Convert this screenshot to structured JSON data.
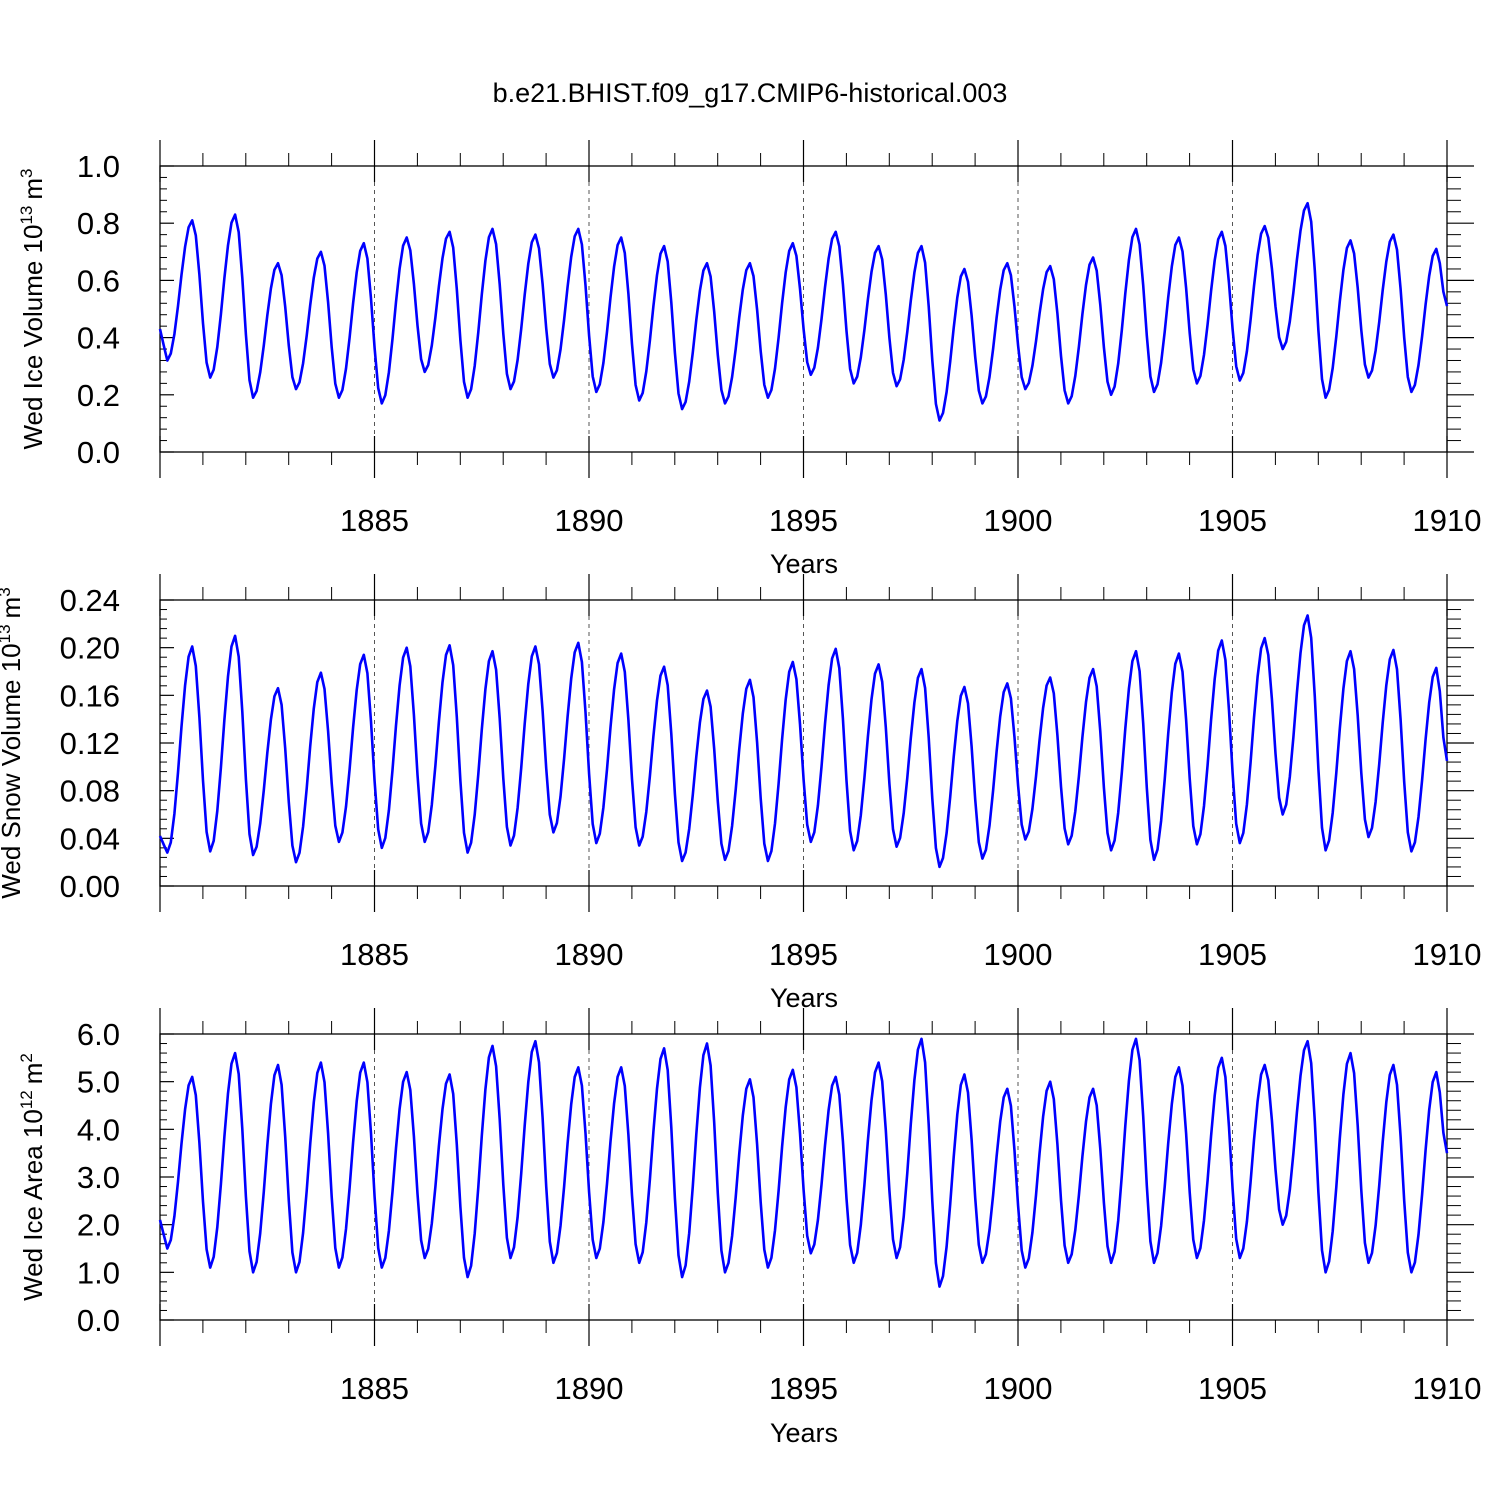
{
  "title": "b.e21.BHIST.f09_g17.CMIP6-historical.003",
  "line_color": "#0000ff",
  "chart_data": [
    {
      "type": "line",
      "ylabel": "Wed Ice Volume 10",
      "ylabel_exp": "13",
      "ylabel_unit": "m",
      "ylabel_unit_exp": "3",
      "xlabel": "Years",
      "xlim": [
        1880.0,
        1910.0
      ],
      "ylim": [
        0.0,
        1.0
      ],
      "yticks": [
        "0.0",
        "0.2",
        "0.4",
        "0.6",
        "0.8",
        "1.0"
      ],
      "ytick_values": [
        0.0,
        0.2,
        0.4,
        0.6,
        0.8,
        1.0
      ],
      "xticks": [
        "1885",
        "1890",
        "1895",
        "1900",
        "1905",
        "1910"
      ],
      "xtick_values": [
        1885,
        1890,
        1895,
        1900,
        1905,
        1910
      ],
      "grid_years": [
        1885,
        1890,
        1895,
        1900,
        1905
      ],
      "start_year": 1880.0,
      "minima": [
        0.32,
        0.26,
        0.19,
        0.22,
        0.19,
        0.17,
        0.28,
        0.19,
        0.22,
        0.26,
        0.21,
        0.18,
        0.15,
        0.17,
        0.19,
        0.27,
        0.24,
        0.23,
        0.11,
        0.17,
        0.22,
        0.17,
        0.2,
        0.21,
        0.24,
        0.25,
        0.36,
        0.19,
        0.26,
        0.21
      ],
      "maxima": [
        0.81,
        0.83,
        0.66,
        0.7,
        0.73,
        0.75,
        0.77,
        0.78,
        0.76,
        0.78,
        0.75,
        0.72,
        0.66,
        0.66,
        0.73,
        0.77,
        0.72,
        0.72,
        0.64,
        0.66,
        0.65,
        0.68,
        0.78,
        0.75,
        0.77,
        0.79,
        0.87,
        0.74,
        0.76,
        0.71
      ],
      "start_value": 0.43,
      "end_value": 0.51
    },
    {
      "type": "line",
      "ylabel": "Wed Snow Volume 10",
      "ylabel_exp": "13",
      "ylabel_unit": "m",
      "ylabel_unit_exp": "3",
      "xlabel": "Years",
      "xlim": [
        1880.0,
        1910.0
      ],
      "ylim": [
        0.0,
        0.24
      ],
      "yticks": [
        "0.00",
        "0.04",
        "0.08",
        "0.12",
        "0.16",
        "0.20",
        "0.24"
      ],
      "ytick_values": [
        0.0,
        0.04,
        0.08,
        0.12,
        0.16,
        0.2,
        0.24
      ],
      "xticks": [
        "1885",
        "1890",
        "1895",
        "1900",
        "1905",
        "1910"
      ],
      "xtick_values": [
        1885,
        1890,
        1895,
        1900,
        1905,
        1910
      ],
      "grid_years": [
        1885,
        1890,
        1895,
        1900,
        1905
      ],
      "start_year": 1880.0,
      "minima": [
        0.028,
        0.029,
        0.026,
        0.02,
        0.037,
        0.032,
        0.037,
        0.028,
        0.034,
        0.045,
        0.036,
        0.034,
        0.021,
        0.022,
        0.021,
        0.037,
        0.03,
        0.033,
        0.016,
        0.023,
        0.039,
        0.035,
        0.03,
        0.022,
        0.035,
        0.036,
        0.06,
        0.03,
        0.041,
        0.029
      ],
      "maxima": [
        0.201,
        0.21,
        0.166,
        0.179,
        0.194,
        0.2,
        0.202,
        0.197,
        0.201,
        0.204,
        0.195,
        0.184,
        0.164,
        0.173,
        0.188,
        0.199,
        0.186,
        0.182,
        0.167,
        0.17,
        0.175,
        0.182,
        0.197,
        0.195,
        0.206,
        0.208,
        0.227,
        0.197,
        0.198,
        0.183
      ],
      "start_value": 0.042,
      "end_value": 0.105
    },
    {
      "type": "line",
      "ylabel": "Wed Ice Area 10",
      "ylabel_exp": "12",
      "ylabel_unit": "m",
      "ylabel_unit_exp": "2",
      "xlabel": "Years",
      "xlim": [
        1880.0,
        1910.0
      ],
      "ylim": [
        0.0,
        6.0
      ],
      "yticks": [
        "0.0",
        "1.0",
        "2.0",
        "3.0",
        "4.0",
        "5.0",
        "6.0"
      ],
      "ytick_values": [
        0.0,
        1.0,
        2.0,
        3.0,
        4.0,
        5.0,
        6.0
      ],
      "xticks": [
        "1885",
        "1890",
        "1895",
        "1900",
        "1905",
        "1910"
      ],
      "xtick_values": [
        1885,
        1890,
        1895,
        1900,
        1905,
        1910
      ],
      "grid_years": [
        1885,
        1890,
        1895,
        1900,
        1905
      ],
      "start_year": 1880.0,
      "minima": [
        1.5,
        1.1,
        1.0,
        1.0,
        1.1,
        1.1,
        1.3,
        0.9,
        1.3,
        1.2,
        1.3,
        1.2,
        0.9,
        1.0,
        1.1,
        1.4,
        1.2,
        1.3,
        0.7,
        1.2,
        1.1,
        1.2,
        1.2,
        1.2,
        1.3,
        1.3,
        2.0,
        1.0,
        1.2,
        1.0
      ],
      "maxima": [
        5.1,
        5.6,
        5.35,
        5.4,
        5.4,
        5.2,
        5.15,
        5.75,
        5.85,
        5.3,
        5.3,
        5.7,
        5.8,
        5.05,
        5.25,
        5.1,
        5.4,
        5.9,
        5.15,
        4.85,
        5.0,
        4.85,
        5.9,
        5.3,
        5.5,
        5.35,
        5.85,
        5.6,
        5.35,
        5.2
      ],
      "start_value": 2.1,
      "end_value": 3.5
    }
  ]
}
